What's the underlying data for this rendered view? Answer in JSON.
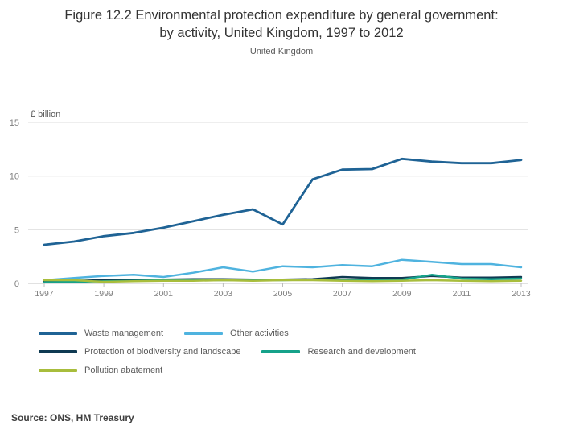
{
  "header": {
    "title_line1": "Figure 12.2 Environmental protection expenditure by general government:",
    "title_line2": "by activity, United Kingdom, 1997 to 2012",
    "subtitle": "United Kingdom"
  },
  "source": "Source: ONS, HM Treasury",
  "chart_data": {
    "type": "line",
    "title": "Figure 12.2 Environmental protection expenditure by general government: by activity, United Kingdom, 1997 to 2012",
    "subtitle": "United Kingdom",
    "unit_label": "£ billion",
    "grid": "horizontal",
    "legend_position": "bottom",
    "ylim": [
      0,
      15
    ],
    "y_ticks": [
      0,
      5,
      10,
      15
    ],
    "x": [
      1997,
      1998,
      1999,
      2000,
      2001,
      2002,
      2003,
      2004,
      2005,
      2006,
      2007,
      2008,
      2009,
      2010,
      2011,
      2012,
      2013
    ],
    "x_tick_labels": [
      "1997",
      "1999",
      "2001",
      "2003",
      "2005",
      "2007",
      "2009",
      "2011",
      "2013"
    ],
    "series": [
      {
        "name": "Waste management",
        "color": "#1F6395",
        "width": 2.8,
        "values": [
          3.6,
          3.9,
          4.4,
          4.7,
          5.2,
          5.8,
          6.4,
          6.9,
          5.5,
          9.7,
          10.6,
          10.65,
          11.6,
          11.35,
          11.2,
          11.2,
          11.5
        ]
      },
      {
        "name": "Other activities",
        "color": "#4FB3DF",
        "width": 2.5,
        "values": [
          0.3,
          0.5,
          0.7,
          0.8,
          0.6,
          1.0,
          1.5,
          1.1,
          1.6,
          1.5,
          1.7,
          1.6,
          2.2,
          2.0,
          1.8,
          1.8,
          1.5
        ]
      },
      {
        "name": "Protection of biodiversity and landscape",
        "color": "#0F3A52",
        "width": 2.5,
        "values": [
          0.2,
          0.25,
          0.3,
          0.3,
          0.35,
          0.4,
          0.4,
          0.35,
          0.35,
          0.4,
          0.6,
          0.5,
          0.5,
          0.7,
          0.55,
          0.55,
          0.6
        ]
      },
      {
        "name": "Research and development",
        "color": "#16A28A",
        "width": 2.5,
        "values": [
          0.1,
          0.15,
          0.2,
          0.25,
          0.3,
          0.3,
          0.3,
          0.3,
          0.3,
          0.35,
          0.35,
          0.3,
          0.35,
          0.8,
          0.45,
          0.4,
          0.45
        ]
      },
      {
        "name": "Pollution abatement",
        "color": "#A8BD3C",
        "width": 2.5,
        "values": [
          0.3,
          0.3,
          0.15,
          0.2,
          0.25,
          0.25,
          0.3,
          0.25,
          0.3,
          0.3,
          0.25,
          0.2,
          0.25,
          0.3,
          0.25,
          0.2,
          0.25
        ]
      }
    ]
  }
}
